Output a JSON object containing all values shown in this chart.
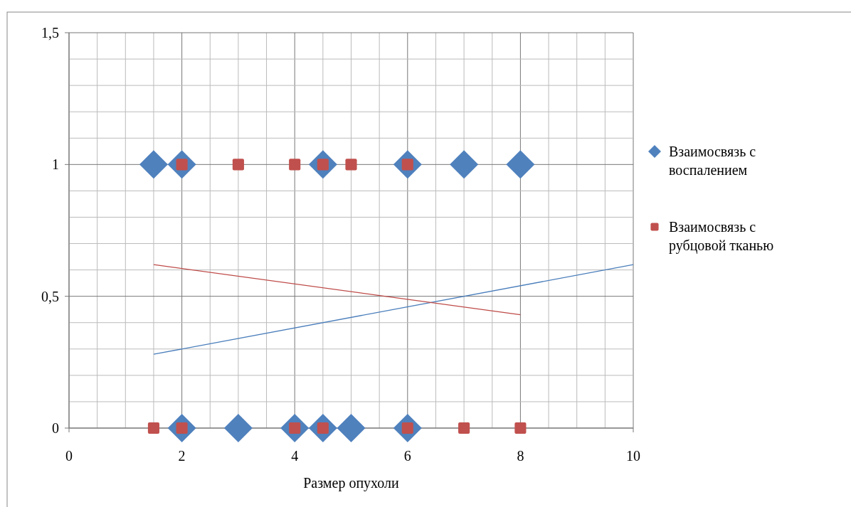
{
  "chart_data": {
    "type": "scatter",
    "xlabel": "Размер опухоли",
    "xlim": [
      0,
      10
    ],
    "xticks": [
      0,
      {
        "value": 0.5,
        "label": null
      },
      {
        "value": 1,
        "label": null
      },
      {
        "value": 1.5,
        "label": null
      },
      2,
      {
        "value": 2.5,
        "label": null
      },
      {
        "value": 3,
        "label": null
      },
      {
        "value": 3.5,
        "label": null
      },
      4,
      {
        "value": 4.5,
        "label": null
      },
      {
        "value": 5,
        "label": null
      },
      {
        "value": 5.5,
        "label": null
      },
      6,
      {
        "value": 6.5,
        "label": null
      },
      {
        "value": 7,
        "label": null
      },
      {
        "value": 7.5,
        "label": null
      },
      8,
      {
        "value": 8.5,
        "label": null
      },
      {
        "value": 9,
        "label": null
      },
      {
        "value": 9.5,
        "label": null
      },
      10
    ],
    "ylim": [
      0,
      1.5
    ],
    "yticks": [
      {
        "value": 0,
        "label": "0"
      },
      {
        "value": 0.1,
        "label": null
      },
      {
        "value": 0.2,
        "label": null
      },
      {
        "value": 0.3,
        "label": null
      },
      {
        "value": 0.4,
        "label": null
      },
      {
        "value": 0.5,
        "label": "0,5"
      },
      {
        "value": 0.6,
        "label": null
      },
      {
        "value": 0.7,
        "label": null
      },
      {
        "value": 0.8,
        "label": null
      },
      {
        "value": 0.9,
        "label": null
      },
      {
        "value": 1,
        "label": "1"
      },
      {
        "value": 1.1,
        "label": null
      },
      {
        "value": 1.2,
        "label": null
      },
      {
        "value": 1.3,
        "label": null
      },
      {
        "value": 1.4,
        "label": null
      },
      {
        "value": 1.5,
        "label": "1,5"
      }
    ],
    "grid": true,
    "legend": "right",
    "series": [
      {
        "name": "Взаимосвязь с воспалением",
        "marker": "diamond",
        "color": "#4f81bd",
        "x": [
          1.5,
          2,
          4.5,
          6,
          7,
          8,
          2,
          3,
          4,
          4.5,
          5,
          6
        ],
        "values": [
          1,
          1,
          1,
          1,
          1,
          1,
          0,
          0,
          0,
          0,
          0,
          0
        ]
      },
      {
        "name": "Взаимосвязь с рубцовой тканью",
        "marker": "square",
        "color": "#c0504d",
        "x": [
          2,
          3,
          4,
          4.5,
          5,
          6,
          1.5,
          2,
          4,
          4.5,
          6,
          7,
          8
        ],
        "values": [
          1,
          1,
          1,
          1,
          1,
          1,
          0,
          0,
          0,
          0,
          0,
          0,
          0
        ]
      },
      {
        "type": "line",
        "color": "#4a7ebb",
        "x": [
          1.5,
          10
        ],
        "values": [
          0.28,
          0.62
        ]
      },
      {
        "type": "line",
        "color": "#be4b48",
        "x": [
          1.5,
          8
        ],
        "values": [
          0.62,
          0.43
        ]
      }
    ]
  }
}
